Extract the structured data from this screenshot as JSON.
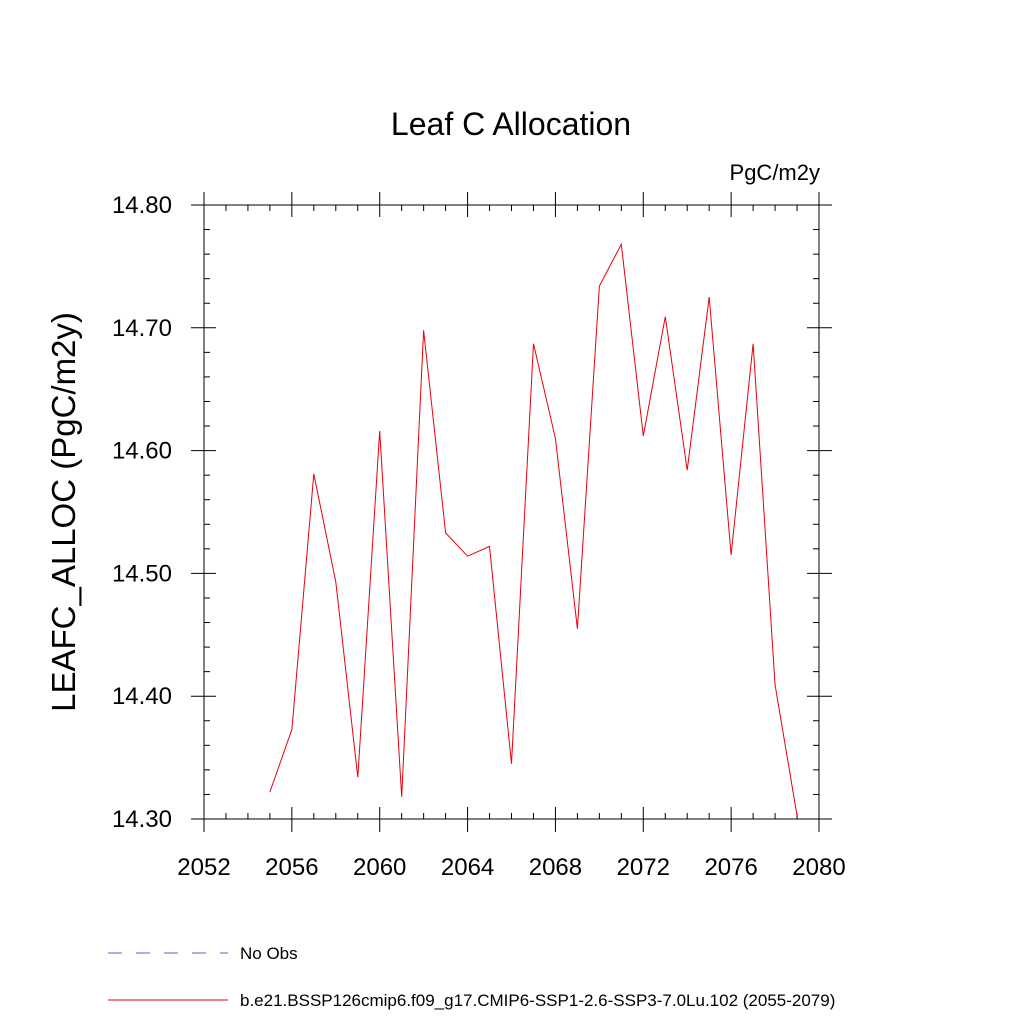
{
  "chart_data": {
    "type": "line",
    "title": "Leaf C Allocation",
    "units_label": "PgC/m2y",
    "xlabel": "",
    "ylabel": "LEAFC_ALLOC  (PgC/m2y)",
    "xlim": [
      2052,
      2080
    ],
    "ylim": [
      14.3,
      14.8
    ],
    "x_ticks": [
      2052,
      2056,
      2060,
      2064,
      2068,
      2072,
      2076,
      2080
    ],
    "x_tick_labels": [
      "2052",
      "2056",
      "2060",
      "2064",
      "2068",
      "2072",
      "2076",
      "2080"
    ],
    "y_ticks": [
      14.3,
      14.4,
      14.5,
      14.6,
      14.7,
      14.8
    ],
    "y_tick_labels": [
      "14.30",
      "14.40",
      "14.50",
      "14.60",
      "14.70",
      "14.80"
    ],
    "grid": false,
    "legend_position": "bottom",
    "series": [
      {
        "name": "b.e21.BSSP126cmip6.f09_g17.CMIP6-SSP1-2.6-SSP3-7.0Lu.102 (2055-2079)",
        "color": "#e8000b",
        "style": "solid",
        "x": [
          2055,
          2056,
          2057,
          2058,
          2059,
          2060,
          2061,
          2062,
          2063,
          2064,
          2065,
          2066,
          2067,
          2068,
          2069,
          2070,
          2071,
          2072,
          2073,
          2074,
          2075,
          2076,
          2077,
          2078,
          2079
        ],
        "y": [
          14.322,
          14.373,
          14.581,
          14.493,
          14.334,
          14.616,
          14.318,
          14.698,
          14.533,
          14.514,
          14.522,
          14.345,
          14.687,
          14.61,
          14.455,
          14.734,
          14.768,
          14.612,
          14.709,
          14.584,
          14.725,
          14.515,
          14.687,
          14.409,
          14.303
        ]
      }
    ],
    "legend": [
      {
        "name": "No Obs",
        "color": "#6a5acd",
        "style": "dashed"
      },
      {
        "name": "b.e21.BSSP126cmip6.f09_g17.CMIP6-SSP1-2.6-SSP3-7.0Lu.102 (2055-2079)",
        "color": "#e8000b",
        "style": "solid"
      }
    ]
  }
}
